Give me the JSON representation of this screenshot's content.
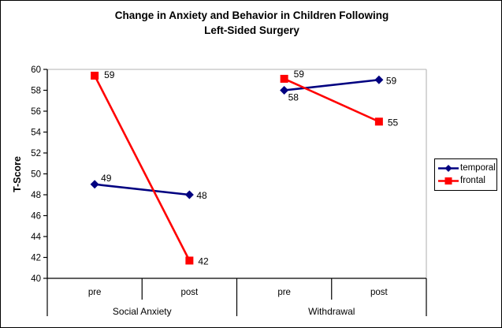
{
  "title": {
    "line1": "Change in Anxiety and Behavior in Children Following",
    "line2": "Left-Sided Surgery"
  },
  "chart_data": {
    "type": "line",
    "title": "Change in Anxiety and Behavior in Children Following Left-Sided Surgery",
    "xlabel": "",
    "ylabel": "T-Score",
    "ylim": [
      40,
      60
    ],
    "y_ticks": [
      40,
      42,
      44,
      46,
      48,
      50,
      52,
      54,
      56,
      58,
      60
    ],
    "groups": [
      "Social Anxiety",
      "Withdrawal"
    ],
    "categories": [
      "pre",
      "post",
      "pre",
      "post"
    ],
    "series": [
      {
        "name": "temporal",
        "color": "#000080",
        "marker": "diamond",
        "values": [
          49,
          48,
          58,
          59
        ],
        "values_plotted": [
          49,
          48,
          58,
          59
        ],
        "label_offsets": [
          [
            8,
            -8
          ],
          [
            9,
            1
          ],
          [
            5,
            9
          ],
          [
            9,
            1
          ]
        ]
      },
      {
        "name": "frontal",
        "color": "#FF0000",
        "marker": "square",
        "values": [
          59,
          42,
          59,
          55
        ],
        "values_plotted": [
          59.4,
          41.7,
          59.1,
          55
        ],
        "label_offsets": [
          [
            12,
            -1
          ],
          [
            11,
            1
          ],
          [
            12,
            -6
          ],
          [
            11,
            1
          ]
        ]
      }
    ],
    "data_labels": true,
    "legend_position": "right",
    "gridlines": "none",
    "segments_split_between_groups": true,
    "axis_color": "#000000",
    "plot_border_color": "#C0C0C0",
    "background_color": "#FFFFFF"
  }
}
